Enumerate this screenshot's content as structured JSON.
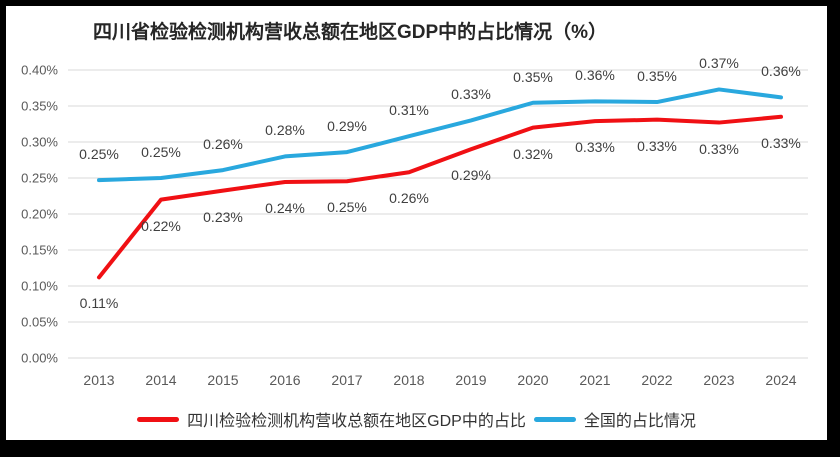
{
  "frame": {
    "background": "#000000",
    "sheet_background": "#FFFFFF"
  },
  "chart_data": {
    "type": "line",
    "title": "四川省检验检测机构营收总额在地区GDP中的占比情况（%）",
    "categories": [
      "2013",
      "2014",
      "2015",
      "2016",
      "2017",
      "2018",
      "2019",
      "2020",
      "2021",
      "2022",
      "2023",
      "2024"
    ],
    "xlabel": "",
    "ylabel": "",
    "ylim_percent": [
      0,
      0.4
    ],
    "y_ticks": [
      "0.40%",
      "0.35%",
      "0.30%",
      "0.25%",
      "0.20%",
      "0.15%",
      "0.10%",
      "0.05%",
      "0.00%"
    ],
    "grid": "horizontal",
    "legend_position": "bottom",
    "series": [
      {
        "name": "四川检验检测机构营收总额在地区GDP中的占比",
        "color": "#F01014",
        "values_percent": [
          0.11,
          0.22,
          0.23,
          0.24,
          0.25,
          0.26,
          0.29,
          0.32,
          0.33,
          0.33,
          0.33,
          0.33
        ],
        "labels": [
          "0.11%",
          "0.22%",
          "0.23%",
          "0.24%",
          "0.25%",
          "0.26%",
          "0.29%",
          "0.32%",
          "0.33%",
          "0.33%",
          "0.33%",
          "0.33%"
        ],
        "plot_values_percent": [
          0.112,
          0.22,
          0.2325,
          0.2445,
          0.2455,
          0.258,
          0.29,
          0.32,
          0.329,
          0.331,
          0.327,
          0.335
        ],
        "label_position": "below"
      },
      {
        "name": "全国的占比情况",
        "color": "#29A8DE",
        "values_percent": [
          0.25,
          0.25,
          0.26,
          0.28,
          0.29,
          0.31,
          0.33,
          0.35,
          0.36,
          0.35,
          0.37,
          0.36
        ],
        "labels": [
          "0.25%",
          "0.25%",
          "0.26%",
          "0.28%",
          "0.29%",
          "0.31%",
          "0.33%",
          "0.35%",
          "0.36%",
          "0.35%",
          "0.37%",
          "0.36%"
        ],
        "plot_values_percent": [
          0.247,
          0.25,
          0.261,
          0.28,
          0.286,
          0.308,
          0.33,
          0.3545,
          0.3565,
          0.3555,
          0.373,
          0.362
        ],
        "label_position": "above"
      }
    ],
    "colors": {
      "gridline": "#D9D9D9",
      "tick_text": "#595959",
      "data_label_text": "#404040",
      "title_text": "#262626"
    }
  }
}
